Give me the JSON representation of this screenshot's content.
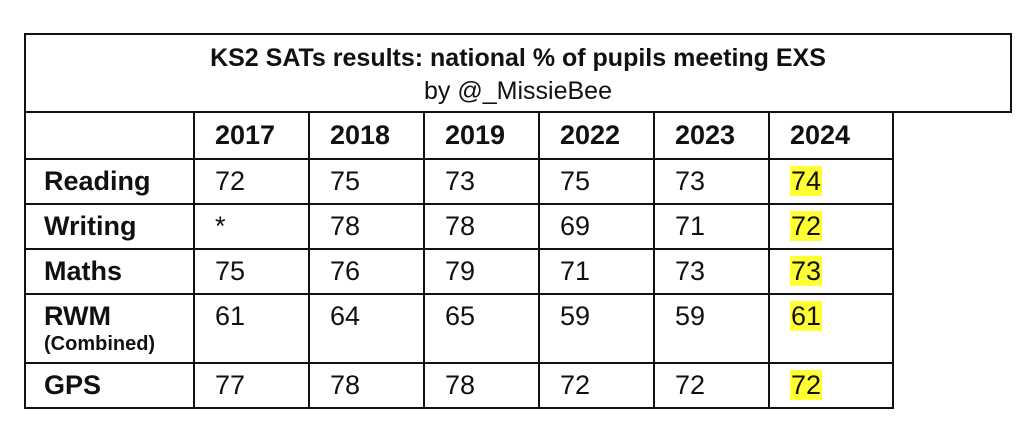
{
  "title": "KS2 SATs results: national % of pupils meeting EXS",
  "subtitle": "by @_MissieBee",
  "highlight_color": "#ffff33",
  "columns": [
    "2017",
    "2018",
    "2019",
    "2022",
    "2023",
    "2024"
  ],
  "rows": [
    {
      "subject": "Reading",
      "note": "",
      "values": [
        "72",
        "75",
        "73",
        "75",
        "73",
        "74"
      ]
    },
    {
      "subject": "Writing",
      "note": "",
      "values": [
        "*",
        "78",
        "78",
        "69",
        "71",
        "72"
      ]
    },
    {
      "subject": "Maths",
      "note": "",
      "values": [
        "75",
        "76",
        "79",
        "71",
        "73",
        "73"
      ]
    },
    {
      "subject": "RWM",
      "note": "(Combined)",
      "values": [
        "61",
        "64",
        "65",
        "59",
        "59",
        "61"
      ]
    },
    {
      "subject": "GPS",
      "note": "",
      "values": [
        "77",
        "78",
        "78",
        "72",
        "72",
        "72"
      ]
    }
  ]
}
